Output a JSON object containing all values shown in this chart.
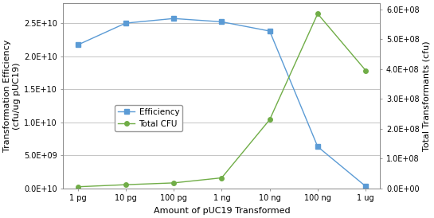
{
  "x_labels": [
    "1 pg",
    "10 pg",
    "100 pg",
    "1 ng",
    "10 ng",
    "100 ng",
    "1 ug"
  ],
  "efficiency_values": [
    21700000000.0,
    25000000000.0,
    25700000000.0,
    25200000000.0,
    23800000000.0,
    6300000000.0,
    300000000.0
  ],
  "total_cfu_values": [
    5000000.0,
    12000000.0,
    18000000.0,
    35000000.0,
    230000000.0,
    585000000.0,
    395000000.0
  ],
  "efficiency_color": "#5B9BD5",
  "total_cfu_color": "#70AD47",
  "marker_efficiency": "s",
  "marker_cfu": "o",
  "ylabel_left": "Transformation Efficiency\n(cfu/ug pUC19)",
  "ylabel_right": "Total Transformants (cfu)",
  "xlabel": "Amount of pUC19 Transformed",
  "legend_efficiency": "Efficiency",
  "legend_cfu": "Total CFU",
  "ylim_left": [
    0,
    28000000000.0
  ],
  "ylim_right": [
    0,
    620000000.0
  ],
  "yticks_left": [
    0,
    5000000000.0,
    10000000000.0,
    15000000000.0,
    20000000000.0,
    25000000000.0
  ],
  "ytick_labels_left": [
    "0.0E+10",
    "5.0E+09",
    "1.0E+10",
    "1.5E+10",
    "2.0E+10",
    "2.5E+10"
  ],
  "yticks_right": [
    0,
    100000000.0,
    200000000.0,
    300000000.0,
    400000000.0,
    500000000.0,
    600000000.0
  ],
  "ytick_labels_right": [
    "0.0E+00",
    "1.0E+08",
    "2.0E+08",
    "3.0E+08",
    "4.0E+08",
    "5.0E+08",
    "6.0E+08"
  ],
  "background_color": "#ffffff",
  "grid_color": "#bbbbbb",
  "spine_color": "#888888",
  "tick_label_fontsize": 7,
  "axis_label_fontsize": 8,
  "legend_fontsize": 7.5,
  "line_width": 1.0,
  "marker_size": 4
}
